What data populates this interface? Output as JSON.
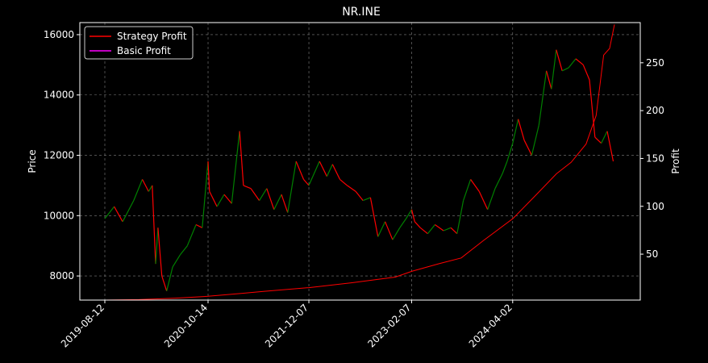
{
  "chart_data": {
    "type": "line",
    "title": "NR.INE",
    "xlabel": "",
    "ylabel": "Price",
    "y2label": "Profit",
    "grid": true,
    "legend_position": "top-left",
    "background": "#000000",
    "x_ticks": [
      "2019-08-12",
      "2020-10-14",
      "2021-12-07",
      "2023-02-07",
      "2024-04-02"
    ],
    "ylim": [
      7200,
      16400
    ],
    "y_ticks": [
      8000,
      10000,
      12000,
      14000,
      16000
    ],
    "y2lim": [
      2,
      292
    ],
    "y2_ticks": [
      50,
      100,
      150,
      200,
      250
    ],
    "x_range": [
      "2019-08-12",
      "2025-05-30"
    ],
    "price_up_color": "#008000",
    "price_down_color": "#ff0000",
    "price_series": [
      {
        "x": "2019-08-12",
        "v": 9900
      },
      {
        "x": "2019-09-20",
        "v": 10300
      },
      {
        "x": "2019-10-25",
        "v": 9800
      },
      {
        "x": "2019-12-10",
        "v": 10500
      },
      {
        "x": "2020-01-15",
        "v": 11200
      },
      {
        "x": "2020-02-10",
        "v": 10800
      },
      {
        "x": "2020-02-25",
        "v": 11000
      },
      {
        "x": "2020-03-10",
        "v": 8400
      },
      {
        "x": "2020-03-20",
        "v": 9600
      },
      {
        "x": "2020-04-05",
        "v": 8000
      },
      {
        "x": "2020-04-25",
        "v": 7500
      },
      {
        "x": "2020-05-20",
        "v": 8300
      },
      {
        "x": "2020-06-20",
        "v": 8700
      },
      {
        "x": "2020-07-20",
        "v": 9000
      },
      {
        "x": "2020-08-25",
        "v": 9700
      },
      {
        "x": "2020-09-20",
        "v": 9600
      },
      {
        "x": "2020-10-14",
        "v": 11800
      },
      {
        "x": "2020-10-20",
        "v": 10800
      },
      {
        "x": "2020-11-20",
        "v": 10300
      },
      {
        "x": "2020-12-20",
        "v": 10700
      },
      {
        "x": "2021-01-20",
        "v": 10400
      },
      {
        "x": "2021-02-22",
        "v": 12800
      },
      {
        "x": "2021-03-10",
        "v": 11000
      },
      {
        "x": "2021-04-10",
        "v": 10900
      },
      {
        "x": "2021-05-15",
        "v": 10500
      },
      {
        "x": "2021-06-15",
        "v": 10900
      },
      {
        "x": "2021-07-15",
        "v": 10200
      },
      {
        "x": "2021-08-15",
        "v": 10700
      },
      {
        "x": "2021-09-10",
        "v": 10100
      },
      {
        "x": "2021-10-15",
        "v": 11800
      },
      {
        "x": "2021-11-15",
        "v": 11200
      },
      {
        "x": "2021-12-07",
        "v": 11000
      },
      {
        "x": "2022-01-20",
        "v": 11800
      },
      {
        "x": "2022-02-20",
        "v": 11300
      },
      {
        "x": "2022-03-15",
        "v": 11700
      },
      {
        "x": "2022-04-15",
        "v": 11200
      },
      {
        "x": "2022-05-15",
        "v": 11000
      },
      {
        "x": "2022-06-20",
        "v": 10800
      },
      {
        "x": "2022-07-20",
        "v": 10500
      },
      {
        "x": "2022-08-20",
        "v": 10600
      },
      {
        "x": "2022-09-20",
        "v": 9300
      },
      {
        "x": "2022-10-20",
        "v": 9800
      },
      {
        "x": "2022-11-20",
        "v": 9200
      },
      {
        "x": "2022-12-20",
        "v": 9600
      },
      {
        "x": "2023-01-15",
        "v": 9900
      },
      {
        "x": "2023-02-07",
        "v": 10200
      },
      {
        "x": "2023-02-20",
        "v": 9800
      },
      {
        "x": "2023-03-15",
        "v": 9600
      },
      {
        "x": "2023-04-15",
        "v": 9400
      },
      {
        "x": "2023-05-15",
        "v": 9700
      },
      {
        "x": "2023-06-20",
        "v": 9500
      },
      {
        "x": "2023-07-20",
        "v": 9600
      },
      {
        "x": "2023-08-15",
        "v": 9400
      },
      {
        "x": "2023-09-10",
        "v": 10500
      },
      {
        "x": "2023-10-10",
        "v": 11200
      },
      {
        "x": "2023-11-15",
        "v": 10800
      },
      {
        "x": "2023-12-20",
        "v": 10200
      },
      {
        "x": "2024-01-20",
        "v": 10900
      },
      {
        "x": "2024-02-20",
        "v": 11400
      },
      {
        "x": "2024-03-10",
        "v": 11800
      },
      {
        "x": "2024-04-02",
        "v": 12400
      },
      {
        "x": "2024-04-25",
        "v": 13200
      },
      {
        "x": "2024-05-20",
        "v": 12500
      },
      {
        "x": "2024-06-20",
        "v": 12000
      },
      {
        "x": "2024-07-20",
        "v": 13000
      },
      {
        "x": "2024-08-20",
        "v": 14800
      },
      {
        "x": "2024-09-10",
        "v": 14200
      },
      {
        "x": "2024-09-30",
        "v": 15500
      },
      {
        "x": "2024-10-25",
        "v": 14800
      },
      {
        "x": "2024-11-20",
        "v": 14900
      },
      {
        "x": "2024-12-20",
        "v": 15200
      },
      {
        "x": "2025-01-20",
        "v": 15000
      },
      {
        "x": "2025-02-15",
        "v": 14500
      },
      {
        "x": "2025-03-10",
        "v": 12600
      },
      {
        "x": "2025-04-05",
        "v": 12400
      },
      {
        "x": "2025-04-30",
        "v": 12800
      },
      {
        "x": "2025-05-25",
        "v": 11800
      }
    ],
    "series": [
      {
        "name": "Strategy Profit",
        "color": "#ff0000",
        "x": [
          "2019-08-12",
          "2020-01-01",
          "2020-06-01",
          "2020-10-14",
          "2021-03-01",
          "2021-06-01",
          "2021-12-07",
          "2022-06-01",
          "2022-12-01",
          "2023-02-07",
          "2023-06-01",
          "2023-09-01",
          "2023-12-01",
          "2024-04-02",
          "2024-07-01",
          "2024-10-01",
          "2024-12-01",
          "2025-02-01",
          "2025-03-15",
          "2025-04-15",
          "2025-05-10",
          "2025-05-30"
        ],
        "values": [
          2,
          2.5,
          4,
          6,
          9,
          11,
          15,
          20,
          26,
          32,
          40,
          46,
          64,
          87,
          110,
          134,
          146,
          165,
          195,
          258,
          265,
          290
        ]
      },
      {
        "name": "Basic Profit",
        "color": "#ff00ff",
        "x": [
          "2019-08-12",
          "2025-05-30"
        ],
        "values": [
          2,
          2
        ]
      }
    ]
  }
}
